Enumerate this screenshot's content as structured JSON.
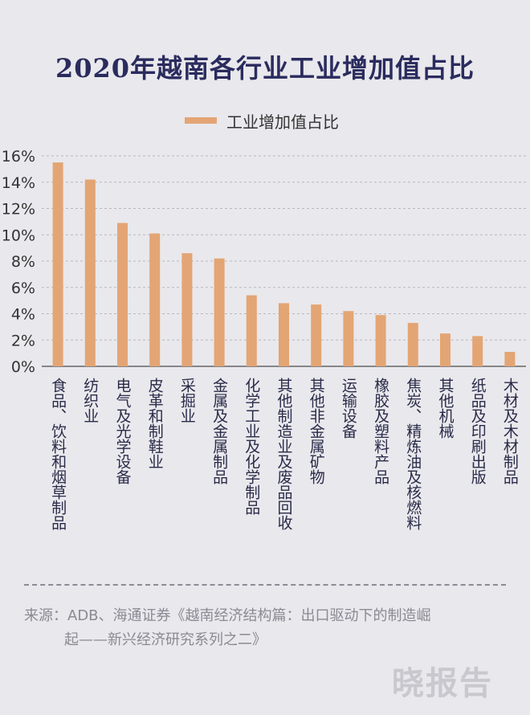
{
  "title": "2020年越南各行业工业增加值占比",
  "legend_label": "工业增加值占比",
  "accent_color": "#e3a574",
  "source_line1": "来源：ADB、海通证券《越南经济结构篇：出口驱动下的制造崛",
  "source_line2": "起——新兴经济研究系列之二》",
  "watermark": "晓报告",
  "chart_data": {
    "type": "bar",
    "title": "2020年越南各行业工业增加值占比",
    "categories": [
      "食品、饮料和烟草制品",
      "纺织业",
      "电气及光学设备",
      "皮革和制鞋业",
      "采掘业",
      "金属及金属制品",
      "化学工业及化学制品",
      "其他制造业及废品回收",
      "其他非金属矿物",
      "运输设备",
      "橡胶及塑料产品",
      "焦炭、精炼油及核燃料",
      "其他机械",
      "纸品及印刷出版",
      "木材及木材制品"
    ],
    "series": [
      {
        "name": "工业增加值占比",
        "values": [
          15.5,
          14.2,
          10.9,
          10.1,
          8.6,
          8.2,
          5.4,
          4.8,
          4.7,
          4.2,
          3.9,
          3.3,
          2.5,
          2.3,
          1.1
        ]
      }
    ],
    "ylim": [
      0,
      16
    ],
    "yticks": [
      "0%",
      "2%",
      "4%",
      "6%",
      "8%",
      "10%",
      "12%",
      "14%",
      "16%"
    ],
    "grid": true,
    "legend_position": "top-center"
  }
}
